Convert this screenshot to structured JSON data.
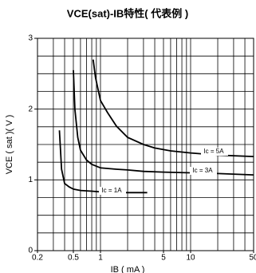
{
  "chart_data": {
    "type": "line",
    "title": "VCE(sat)-IB特性( 代表例 )",
    "x_label": "IB ( mA )",
    "y_label": "VCE ( sat )( V )",
    "log_x": true,
    "xlim": [
      0.2,
      50
    ],
    "ylim": [
      0,
      3
    ],
    "xticks": [
      0.2,
      0.5,
      1,
      5,
      10,
      50
    ],
    "yticks": [
      0,
      1,
      2,
      3
    ],
    "x_grid": [
      0.2,
      0.3,
      0.4,
      0.5,
      0.6,
      0.7,
      0.8,
      0.9,
      1,
      2,
      3,
      4,
      5,
      6,
      7,
      8,
      9,
      10,
      20,
      30,
      40,
      50
    ],
    "y_grid": [
      0.25,
      0.5,
      0.75,
      1,
      1.25,
      1.5,
      1.75,
      2,
      2.25,
      2.5,
      2.75
    ],
    "grid": true,
    "series": [
      {
        "name": "Ic = 1A",
        "color": "#000000",
        "x": [
          0.35,
          0.37,
          0.4,
          0.45,
          0.5,
          0.6,
          0.8,
          1,
          1.5,
          2,
          3.3
        ],
        "values": [
          1.7,
          1.15,
          0.95,
          0.9,
          0.87,
          0.85,
          0.84,
          0.83,
          0.82,
          0.82,
          0.82
        ]
      },
      {
        "name": "Ic = 3A",
        "color": "#000000",
        "x": [
          0.5,
          0.52,
          0.56,
          0.6,
          0.7,
          0.8,
          1,
          1.5,
          2,
          3,
          5,
          10,
          20,
          50
        ],
        "values": [
          2.55,
          2.0,
          1.6,
          1.42,
          1.28,
          1.22,
          1.17,
          1.15,
          1.14,
          1.12,
          1.11,
          1.1,
          1.09,
          1.07
        ]
      },
      {
        "name": "Ic = 5A",
        "color": "#000000",
        "x": [
          0.83,
          0.88,
          0.95,
          1,
          1.2,
          1.5,
          2,
          3,
          4,
          6,
          10,
          20,
          50
        ],
        "values": [
          2.7,
          2.45,
          2.25,
          2.12,
          1.95,
          1.76,
          1.6,
          1.5,
          1.45,
          1.41,
          1.38,
          1.35,
          1.33
        ]
      }
    ]
  }
}
